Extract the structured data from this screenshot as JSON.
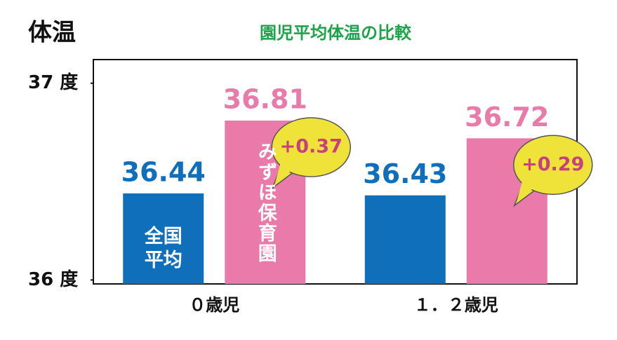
{
  "chart_data": {
    "type": "bar",
    "title": "園児平均体温の比較",
    "y_label": "体温",
    "categories": [
      "０歳児",
      "１．２歳児"
    ],
    "series": [
      {
        "name": "全国平均",
        "color": "#0f6fba",
        "values": [
          36.44,
          36.43
        ]
      },
      {
        "name": "みずほ保育園",
        "color": "#e97aa9",
        "values": [
          36.81,
          36.72
        ]
      }
    ],
    "annotations": [
      "+0.37",
      "+0.29"
    ],
    "ylim": [
      35.98,
      37.12
    ],
    "yticks": [
      {
        "value": 37,
        "label": "37 度"
      },
      {
        "value": 36,
        "label": "36 度"
      }
    ]
  }
}
